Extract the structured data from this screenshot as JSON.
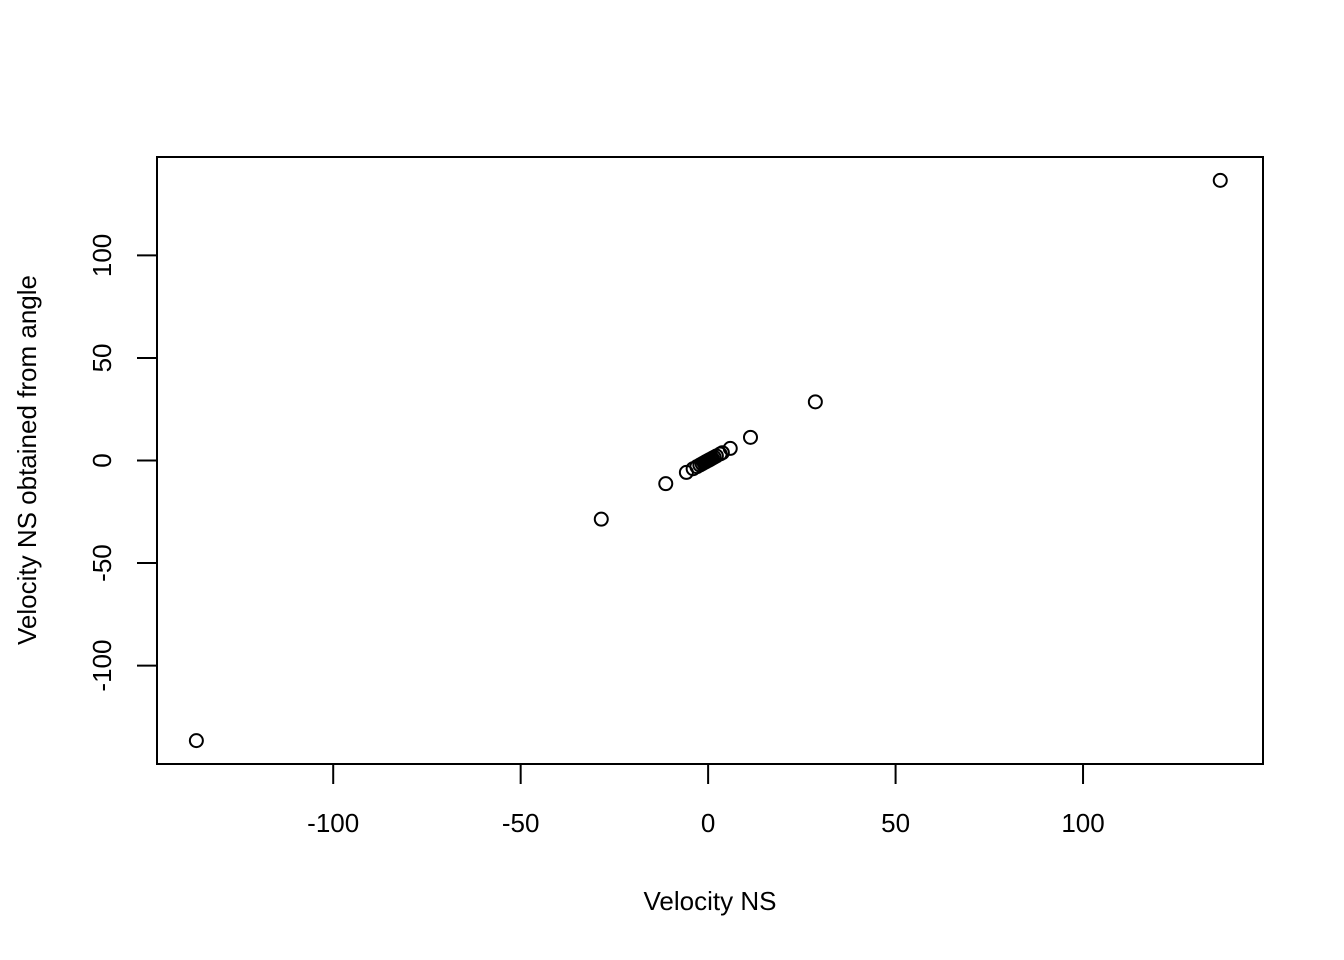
{
  "chart_data": {
    "type": "scatter",
    "title": "",
    "xlabel": "Velocity NS",
    "ylabel": "Velocity NS obtained from angle",
    "xlim": [
      -147,
      148
    ],
    "ylim": [
      -148,
      148
    ],
    "x_ticks": [
      -100,
      -50,
      0,
      50,
      100
    ],
    "y_ticks": [
      -100,
      -50,
      0,
      50,
      100
    ],
    "x_tick_labels": [
      "-100",
      "-50",
      "0",
      "50",
      "100"
    ],
    "y_tick_labels": [
      "-100",
      "-50",
      "0",
      "50",
      "100"
    ],
    "grid": false,
    "legend": "none",
    "marker": "open-circle",
    "colors": {
      "points": "#000000",
      "axes": "#000000",
      "background": "#ffffff"
    },
    "series": [
      {
        "x": [
          -136.5,
          -28.5,
          -11.3,
          -5.8,
          -4.0,
          -3.0,
          -2.2,
          -1.6,
          -1.1,
          -0.7,
          -0.3,
          0.0,
          0.3,
          0.7,
          1.1,
          1.6,
          2.2,
          3.2,
          3.8,
          5.9,
          11.3,
          28.6,
          136.6
        ],
        "y": [
          -136.6,
          -28.6,
          -11.3,
          -5.8,
          -4.0,
          -3.0,
          -2.2,
          -1.6,
          -1.1,
          -0.7,
          -0.3,
          0.0,
          0.3,
          0.7,
          1.1,
          1.6,
          2.2,
          3.2,
          3.8,
          5.9,
          11.3,
          28.6,
          136.6
        ]
      }
    ]
  }
}
